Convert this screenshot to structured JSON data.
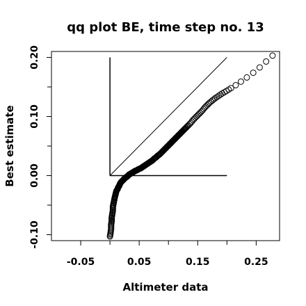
{
  "chart_data": {
    "type": "scatter",
    "title": "qq plot BE, time step no. 13",
    "xlabel": "Altimeter data",
    "ylabel": "Best estimate",
    "xlim": [
      -0.1,
      0.29
    ],
    "ylim": [
      -0.11,
      0.21
    ],
    "x_ticks": [
      -0.05,
      0.05,
      0.15,
      0.25
    ],
    "x_tick_labels": [
      "-0.05",
      "0.05",
      "0.15",
      "0.25"
    ],
    "x_minor_ticks": [
      0.0,
      0.1,
      0.2
    ],
    "y_ticks": [
      -0.1,
      0.0,
      0.1,
      0.2
    ],
    "y_tick_labels": [
      "-0.10",
      "0.00",
      "0.10",
      "0.20"
    ],
    "y_minor_ticks": [
      -0.05,
      0.05,
      0.15
    ],
    "grid": false,
    "reference_lines": [
      {
        "kind": "vertical",
        "x": 0.0,
        "y_from": 0.0,
        "y_to": 0.2
      },
      {
        "kind": "horizontal",
        "y": 0.0,
        "x_from": 0.0,
        "x_to": 0.2
      },
      {
        "kind": "identity",
        "from": [
          0.0,
          0.0
        ],
        "to": [
          0.2,
          0.2
        ]
      }
    ],
    "series": [
      {
        "marker": "open-circle",
        "points": [
          [
            0.0,
            -0.103
          ],
          [
            0.001,
            -0.097
          ],
          [
            0.002,
            -0.09
          ],
          [
            0.002,
            -0.083
          ],
          [
            0.003,
            -0.077
          ],
          [
            0.003,
            -0.071
          ],
          [
            0.004,
            -0.065
          ],
          [
            0.005,
            -0.059
          ],
          [
            0.005,
            -0.053
          ],
          [
            0.006,
            -0.048
          ],
          [
            0.007,
            -0.043
          ],
          [
            0.008,
            -0.038
          ],
          [
            0.009,
            -0.034
          ],
          [
            0.01,
            -0.03
          ],
          [
            0.011,
            -0.026
          ],
          [
            0.013,
            -0.023
          ],
          [
            0.014,
            -0.02
          ],
          [
            0.016,
            -0.017
          ],
          [
            0.017,
            -0.014
          ],
          [
            0.019,
            -0.011
          ],
          [
            0.021,
            -0.009
          ],
          [
            0.023,
            -0.007
          ],
          [
            0.025,
            -0.005
          ],
          [
            0.027,
            -0.003
          ],
          [
            0.029,
            -0.002
          ],
          [
            0.031,
            0.0
          ],
          [
            0.033,
            0.002
          ],
          [
            0.035,
            0.003
          ],
          [
            0.038,
            0.005
          ],
          [
            0.04,
            0.006
          ],
          [
            0.043,
            0.008
          ],
          [
            0.046,
            0.009
          ],
          [
            0.049,
            0.011
          ],
          [
            0.052,
            0.012
          ],
          [
            0.055,
            0.014
          ],
          [
            0.058,
            0.016
          ],
          [
            0.061,
            0.018
          ],
          [
            0.064,
            0.02
          ],
          [
            0.067,
            0.022
          ],
          [
            0.07,
            0.024
          ],
          [
            0.073,
            0.026
          ],
          [
            0.076,
            0.029
          ],
          [
            0.079,
            0.031
          ],
          [
            0.082,
            0.034
          ],
          [
            0.085,
            0.036
          ],
          [
            0.088,
            0.039
          ],
          [
            0.091,
            0.042
          ],
          [
            0.094,
            0.045
          ],
          [
            0.097,
            0.048
          ],
          [
            0.1,
            0.051
          ],
          [
            0.103,
            0.054
          ],
          [
            0.106,
            0.057
          ],
          [
            0.109,
            0.06
          ],
          [
            0.112,
            0.063
          ],
          [
            0.115,
            0.066
          ],
          [
            0.118,
            0.069
          ],
          [
            0.121,
            0.072
          ],
          [
            0.124,
            0.075
          ],
          [
            0.127,
            0.078
          ],
          [
            0.13,
            0.081
          ],
          [
            0.134,
            0.085
          ],
          [
            0.138,
            0.089
          ],
          [
            0.142,
            0.094
          ],
          [
            0.146,
            0.098
          ],
          [
            0.15,
            0.102
          ],
          [
            0.154,
            0.106
          ],
          [
            0.158,
            0.11
          ],
          [
            0.162,
            0.115
          ],
          [
            0.166,
            0.119
          ],
          [
            0.17,
            0.123
          ],
          [
            0.175,
            0.127
          ],
          [
            0.18,
            0.131
          ],
          [
            0.186,
            0.135
          ],
          [
            0.192,
            0.139
          ],
          [
            0.199,
            0.143
          ],
          [
            0.207,
            0.148
          ],
          [
            0.215,
            0.153
          ],
          [
            0.224,
            0.159
          ],
          [
            0.234,
            0.166
          ],
          [
            0.245,
            0.174
          ],
          [
            0.256,
            0.183
          ],
          [
            0.267,
            0.193
          ],
          [
            0.278,
            0.203
          ],
          [
            0.289,
            0.213
          ]
        ]
      }
    ]
  }
}
